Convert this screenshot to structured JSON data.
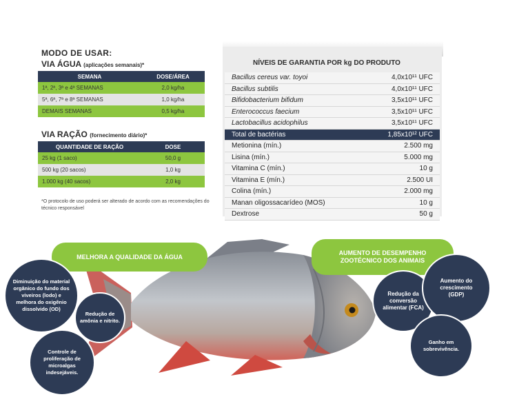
{
  "left": {
    "title": "MODO DE USAR:",
    "agua_title": "VIA ÁGUA",
    "agua_note": "(aplicações semanais)*",
    "agua_headers": [
      "SEMANA",
      "DOSE/ÁREA"
    ],
    "agua_rows": [
      [
        "1ª, 2ª, 3ª e 4ª SEMANAS",
        "2,0 kg/ha"
      ],
      [
        "5ª, 6ª, 7ª e 8ª SEMANAS",
        "1,0 kg/ha"
      ],
      [
        "DEMAIS SEMANAS",
        "0,5 kg/ha"
      ]
    ],
    "racao_title": "VIA RAÇÃO",
    "racao_note": "(fornecimento diário)*",
    "racao_headers": [
      "QUANTIDADE DE RAÇÃO",
      "DOSE"
    ],
    "racao_rows": [
      [
        "25 kg (1 saco)",
        "50,0 g"
      ],
      [
        "500 kg (20 sacos)",
        "1,0 kg"
      ],
      [
        "1.000 kg (40 sacos)",
        "2,0 kg"
      ]
    ],
    "footnote": "*O protocolo de uso poderá ser alterado de acordo com as recomendações do técnico responsável"
  },
  "right": {
    "title": "NÍVEIS DE GARANTIA POR kg DO PRODUTO",
    "rows": [
      {
        "name": "Bacillus cereus var. toyoi",
        "value": "4,0x10¹¹ UFC"
      },
      {
        "name": "Bacillus subtilis",
        "value": "4,0x10¹¹ UFC"
      },
      {
        "name": "Bifidobacterium bifidum",
        "value": "3,5x10¹¹ UFC"
      },
      {
        "name": "Enterococcus faecium",
        "value": "3,5x10¹¹ UFC"
      },
      {
        "name": "Lactobacillus acidophilus",
        "value": "3,5x10¹¹ UFC"
      },
      {
        "name": "Total de bactérias",
        "value": "1,85x10¹² UFC"
      },
      {
        "name": "Metionina (mín.)",
        "value": "2.500 mg"
      },
      {
        "name": "Lisina (mín.)",
        "value": "5.000 mg"
      },
      {
        "name": "Vitamina C (mín.)",
        "value": "10 g"
      },
      {
        "name": "Vitamina E (mín.)",
        "value": "2.500 UI"
      },
      {
        "name": "Colina (mín.)",
        "value": "2.000 mg"
      },
      {
        "name": "Manan oligossacarídeo (MOS)",
        "value": "10 g"
      },
      {
        "name": "Dextrose",
        "value": "50 g"
      }
    ]
  },
  "benefits": {
    "agua_pill": "MELHORA A QUALIDADE DA ÁGUA",
    "desempenho_pill": "AUMENTO DE DESEMPENHO ZOOTÉCNICO DOS ANIMAIS",
    "circle_materia": "Diminuição do material orgânico do fundo dos viveiros (lodo) e melhora do oxigênio dissolvido (OD)",
    "circle_amonia": "Redução de amônia e nitrito.",
    "circle_microalgas": "Controle de proliferação de microalgas indesejáveis.",
    "circle_conversao": "Redução da conversão alimentar (FCA)",
    "circle_crescimento": "Aumento do crescimento (GDP)",
    "circle_sobrevivencia": "Ganho em sobrevivência."
  },
  "colors": {
    "navy": "#2d3b55",
    "green": "#8dc63f",
    "light_gray": "#e4e4e4"
  }
}
